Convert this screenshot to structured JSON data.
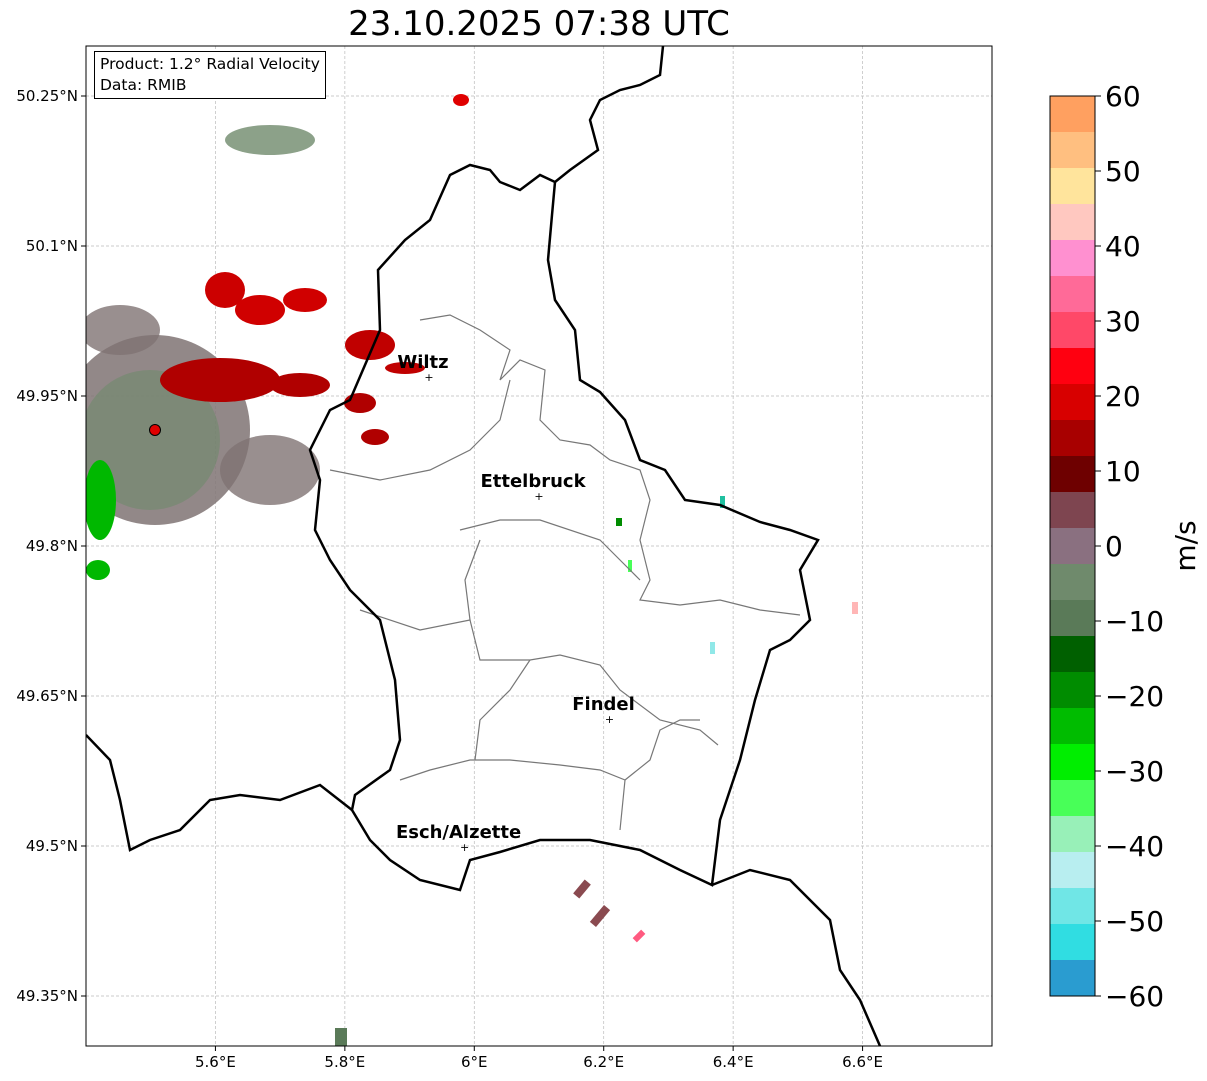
{
  "title": "23.10.2025 07:38 UTC",
  "info": {
    "product": "Product: 1.2° Radial Velocity",
    "data": "Data: RMIB"
  },
  "chart_data": {
    "type": "heatmap",
    "title": "23.10.2025 07:38 UTC",
    "x_ticks": [
      "5.6°E",
      "5.8°E",
      "6°E",
      "6.2°E",
      "6.4°E",
      "6.6°E"
    ],
    "y_ticks": [
      "50.25°N",
      "50.1°N",
      "49.95°N",
      "49.8°N",
      "49.65°N",
      "49.5°N",
      "49.35°N"
    ],
    "xlim": [
      5.4,
      6.8
    ],
    "ylim": [
      49.3,
      50.3
    ],
    "grid": true,
    "colorbar": {
      "label": "m/s",
      "range": [
        -60,
        60
      ],
      "ticks": [
        "60",
        "50",
        "40",
        "30",
        "20",
        "10",
        "0",
        "−10",
        "−20",
        "−30",
        "−40",
        "−50",
        "−60"
      ],
      "colors_top_to_bottom": [
        "#ffa060",
        "#ffbf80",
        "#ffe49c",
        "#ffc8c0",
        "#ff90d0",
        "#ff6a98",
        "#ff4868",
        "#ff0010",
        "#d80000",
        "#a80000",
        "#6e0000",
        "#7e4550",
        "#8a7080",
        "#6f8a6c",
        "#5a7a58",
        "#006000",
        "#008c00",
        "#00bc00",
        "#00ee00",
        "#48ff58",
        "#98f0b8",
        "#b8eef0",
        "#70e6e6",
        "#30dde2",
        "#2a9cd0"
      ]
    },
    "radar_site": {
      "lon": 5.506,
      "lat": 49.916
    },
    "cities": [
      {
        "name": "Wiltz",
        "lon": 5.93,
        "lat": 49.968
      },
      {
        "name": "Ettelbruck",
        "lon": 6.1,
        "lat": 49.849
      },
      {
        "name": "Findel",
        "lon": 6.209,
        "lat": 49.626
      },
      {
        "name": "Esch/Alzette",
        "lon": 5.985,
        "lat": 49.498
      }
    ]
  }
}
